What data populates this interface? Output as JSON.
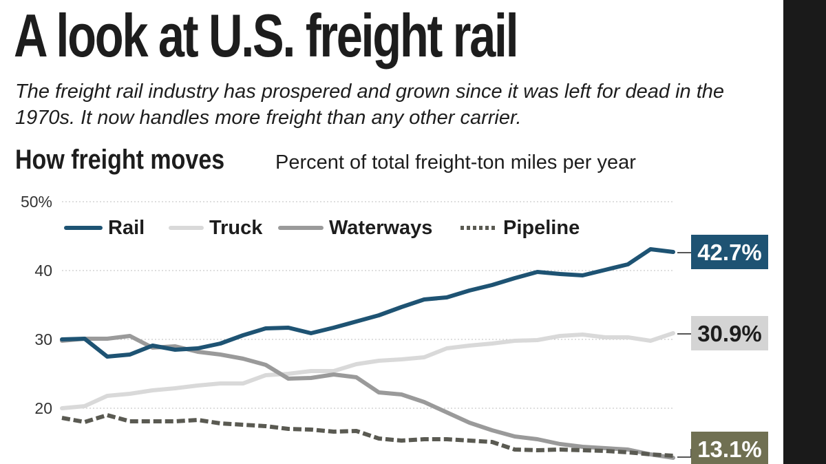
{
  "header": {
    "title": "A look at U.S. freight rail",
    "subtitle": "The freight rail industry has prospered and grown since it was left for dead in the 1970s. It now handles more freight than any other carrier.",
    "section_heading": "How freight moves",
    "units_label": "Percent of total freight-ton miles per year"
  },
  "chart_data": {
    "type": "line",
    "title": "How freight moves",
    "subtitle": "Percent of total freight-ton miles per year",
    "y_ticks": [
      "50%",
      "40",
      "30",
      "20"
    ],
    "y_tick_values": [
      50,
      40,
      30,
      20
    ],
    "ylim": [
      13,
      50
    ],
    "grid": true,
    "legend_position": "top-left",
    "series": [
      {
        "name": "Rail",
        "color": "#1e5373",
        "style": "solid",
        "end_label": "42.7%",
        "end_label_bg": "#1e5373",
        "end_label_fg": "#ffffff",
        "values": [
          30,
          30.1,
          27.5,
          27.8,
          29.1,
          28.5,
          28.7,
          29.4,
          30.6,
          31.6,
          31.7,
          30.9,
          31.7,
          32.6,
          33.5,
          34.7,
          35.8,
          36.1,
          37.1,
          37.9,
          38.9,
          39.8,
          39.5,
          39.3,
          40.1,
          40.9,
          43.1,
          42.7
        ]
      },
      {
        "name": "Truck",
        "color": "#d9d9d9",
        "style": "solid",
        "end_label": "30.9%",
        "end_label_bg": "#d4d4d4",
        "end_label_fg": "#1d1d1d",
        "values": [
          20,
          20.3,
          21.8,
          22.1,
          22.6,
          22.9,
          23.3,
          23.6,
          23.6,
          24.8,
          25.0,
          25.4,
          25.4,
          26.4,
          26.9,
          27.1,
          27.4,
          28.7,
          29.1,
          29.4,
          29.8,
          29.9,
          30.5,
          30.7,
          30.3,
          30.3,
          29.8,
          30.9
        ]
      },
      {
        "name": "Waterways",
        "color": "#9a9a9a",
        "style": "solid",
        "end_label": "",
        "end_label_bg": "",
        "end_label_fg": "",
        "values": [
          29.8,
          30.1,
          30.1,
          30.5,
          28.8,
          29.0,
          28.2,
          27.8,
          27.2,
          26.3,
          24.3,
          24.4,
          24.9,
          24.5,
          22.3,
          22.0,
          20.9,
          19.4,
          17.9,
          16.8,
          15.9,
          15.5,
          14.8,
          14.4,
          14.2,
          14.0,
          13.3,
          12.8
        ]
      },
      {
        "name": "Pipeline",
        "color": "#5a5a52",
        "style": "dashed",
        "end_label": "13.1%",
        "end_label_bg": "#707052",
        "end_label_fg": "#ffffff",
        "values": [
          18.6,
          18.0,
          19.0,
          18.1,
          18.1,
          18.1,
          18.3,
          17.8,
          17.6,
          17.4,
          17.0,
          16.9,
          16.6,
          16.7,
          15.6,
          15.3,
          15.5,
          15.5,
          15.3,
          15.1,
          14.0,
          13.9,
          14.0,
          13.9,
          13.8,
          13.6,
          13.3,
          13.1
        ]
      }
    ]
  }
}
